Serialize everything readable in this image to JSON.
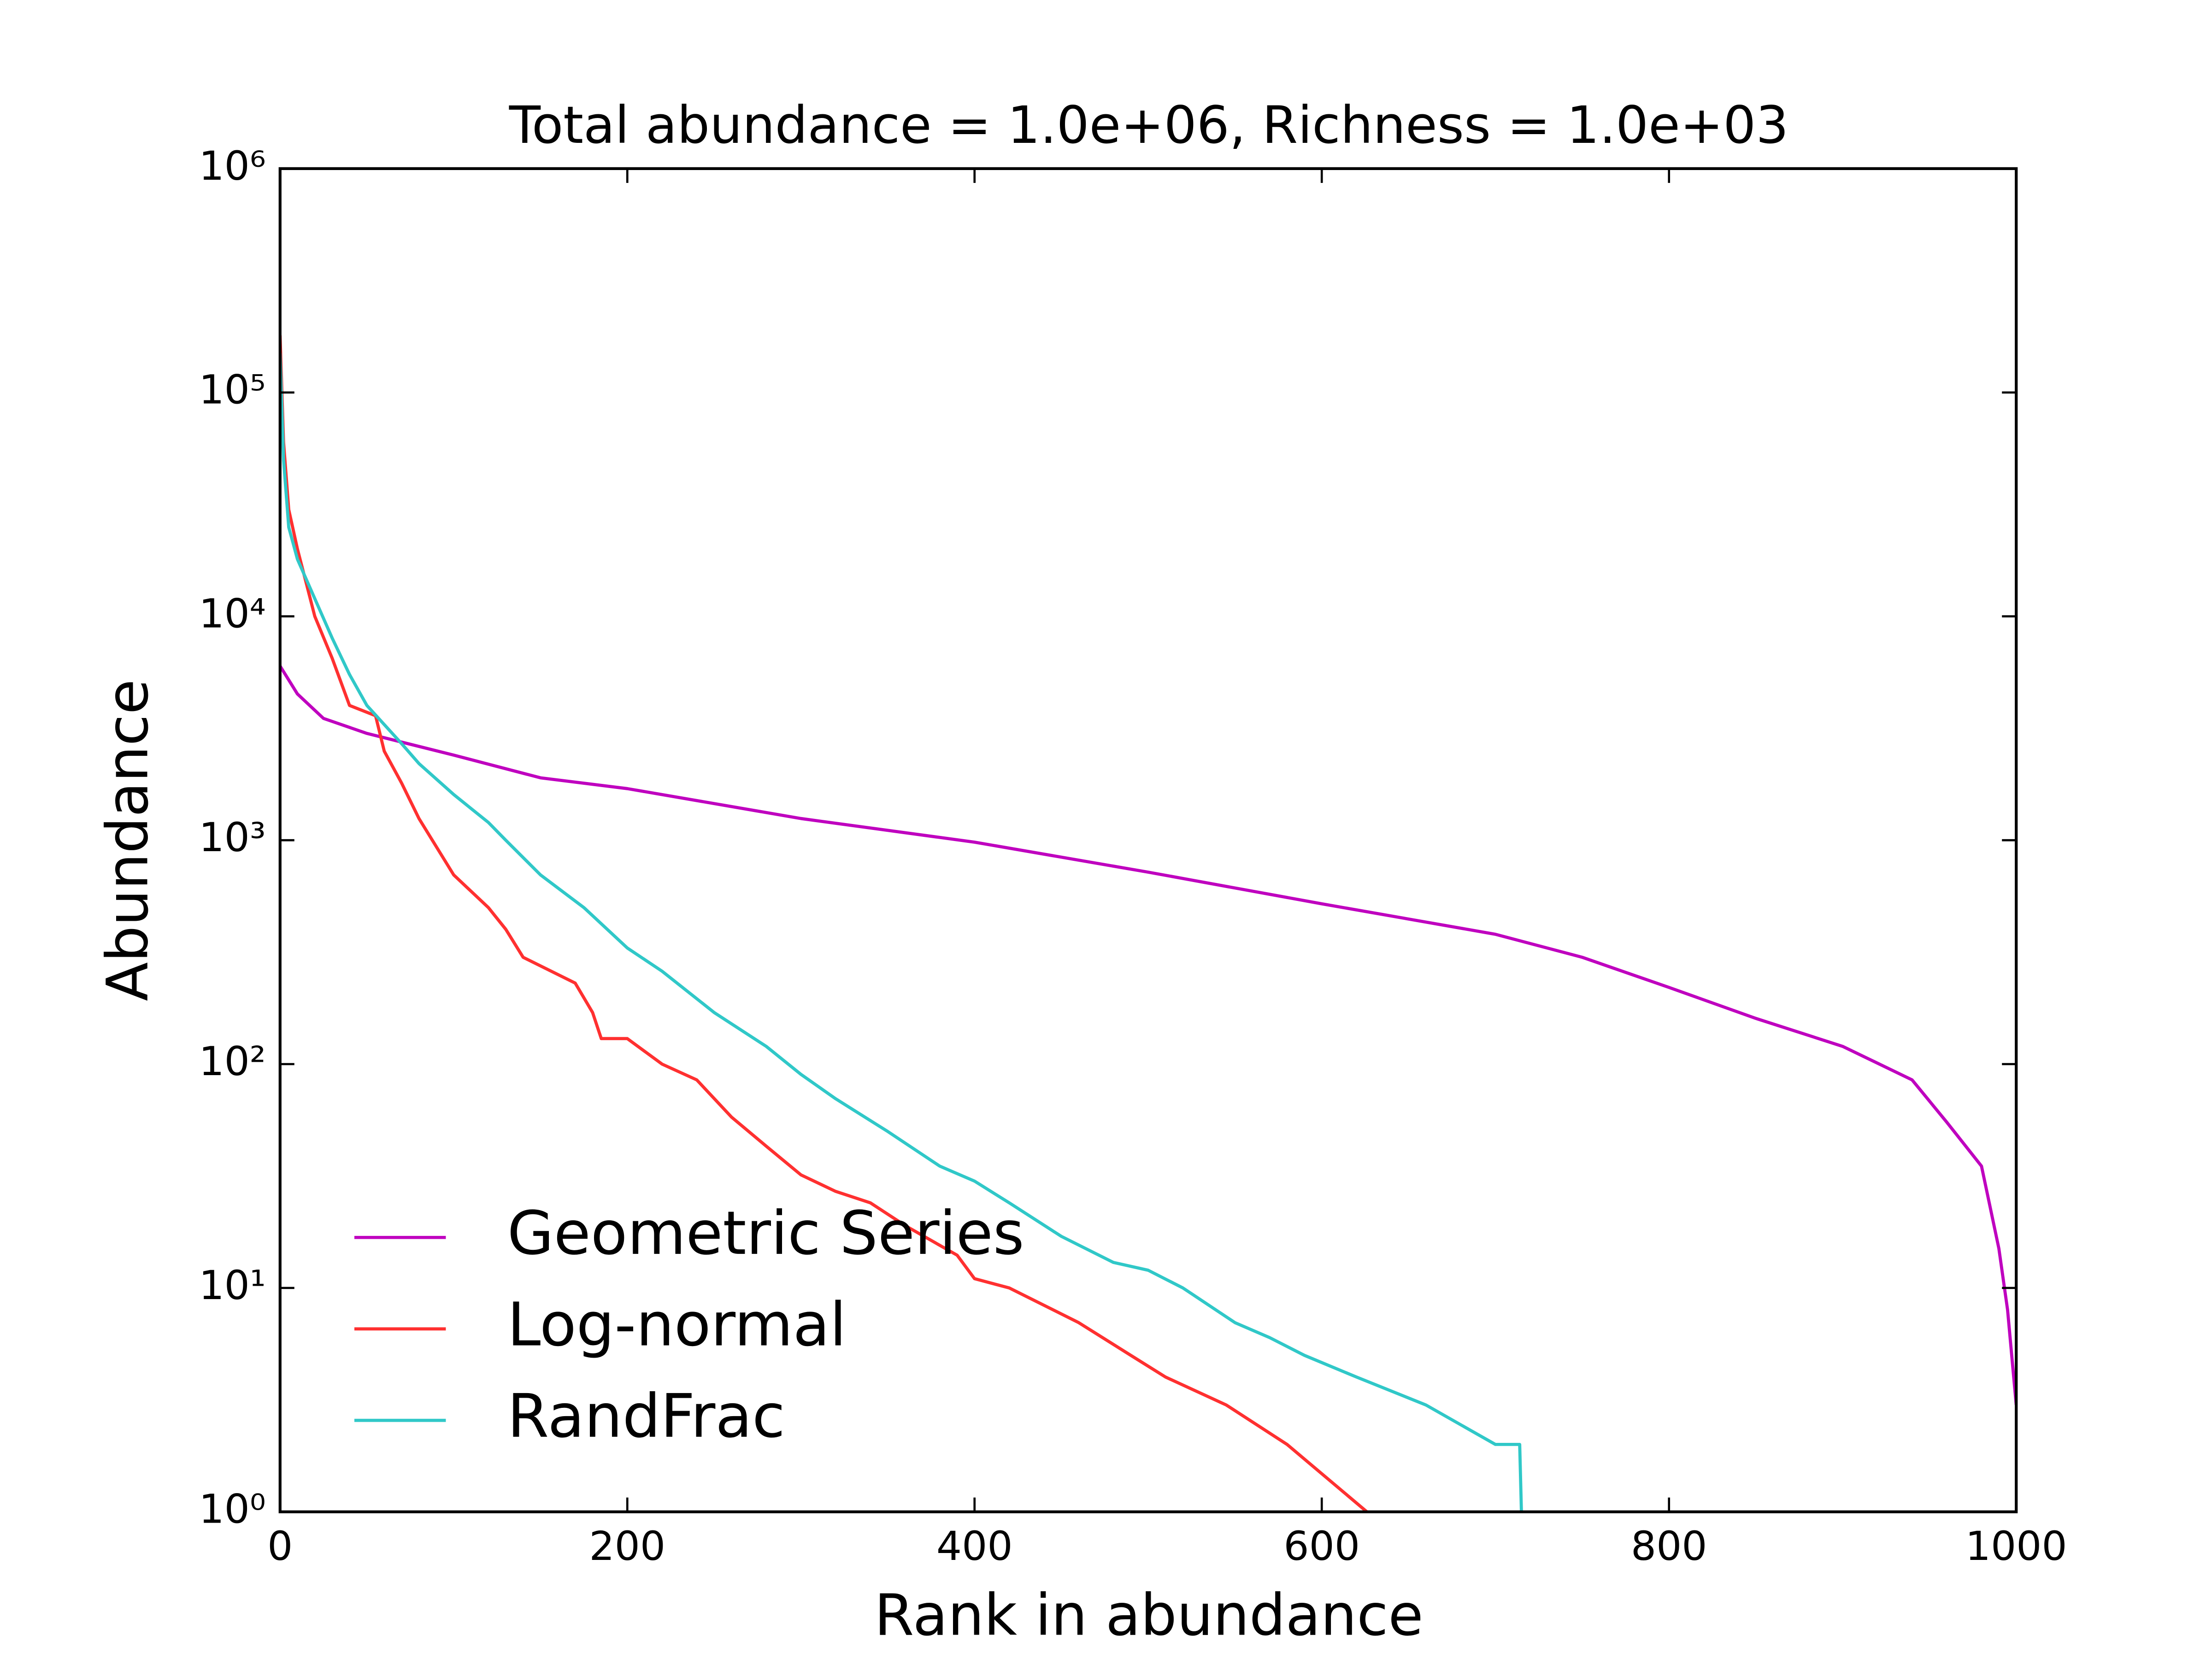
{
  "chart_data": {
    "type": "line",
    "title": "Total abundance = 1.0e+06, Richness = 1.0e+03",
    "x_label": "Rank in abundance",
    "y_label": "Abundance",
    "xlim": [
      0,
      1000
    ],
    "xticks": [
      0,
      200,
      400,
      600,
      800,
      1000
    ],
    "ylim": [
      1,
      1000000
    ],
    "log_y": true,
    "yticks": [
      {
        "value": 1,
        "label": "10⁰"
      },
      {
        "value": 10,
        "label": "10¹"
      },
      {
        "value": 100,
        "label": "10²"
      },
      {
        "value": 1000,
        "label": "10³"
      },
      {
        "value": 10000,
        "label": "10⁴"
      },
      {
        "value": 100000,
        "label": "10⁵"
      },
      {
        "value": 1000000,
        "label": "10⁶"
      }
    ],
    "legend": "lower left",
    "series": [
      {
        "name": "Geometric Series",
        "color": "#bf00bf",
        "x": [
          0,
          10,
          25,
          50,
          100,
          150,
          200,
          300,
          400,
          500,
          600,
          700,
          750,
          800,
          850,
          900,
          940,
          960,
          980,
          990,
          995,
          1000
        ],
        "values": [
          6000,
          4500,
          3500,
          3000,
          2400,
          1900,
          1700,
          1250,
          980,
          720,
          520,
          380,
          300,
          220,
          160,
          120,
          85,
          55,
          35,
          15,
          8,
          3
        ]
      },
      {
        "name": "Log-normal",
        "color": "#ff3030",
        "x": [
          0,
          2,
          5,
          10,
          20,
          30,
          40,
          55,
          60,
          70,
          80,
          100,
          120,
          130,
          140,
          170,
          180,
          185,
          200,
          220,
          240,
          260,
          280,
          300,
          320,
          340,
          360,
          390,
          400,
          420,
          460,
          490,
          510,
          545,
          580,
          626
        ],
        "values": [
          180000,
          60000,
          30000,
          20000,
          10000,
          6500,
          4000,
          3600,
          2500,
          1800,
          1250,
          700,
          500,
          400,
          300,
          230,
          170,
          130,
          130,
          100,
          85,
          58,
          43,
          32,
          27,
          24,
          19,
          14,
          11,
          10,
          7,
          5,
          4,
          3,
          2,
          1
        ]
      },
      {
        "name": "RandFrac",
        "color": "#30c8c8",
        "x": [
          0,
          2,
          5,
          10,
          20,
          30,
          40,
          50,
          70,
          80,
          100,
          120,
          130,
          150,
          175,
          200,
          220,
          250,
          280,
          300,
          320,
          350,
          380,
          400,
          420,
          450,
          480,
          500,
          520,
          550,
          570,
          590,
          620,
          660,
          700,
          714,
          715
        ],
        "values": [
          150000,
          50000,
          25000,
          18000,
          12000,
          8000,
          5500,
          4000,
          2700,
          2200,
          1600,
          1200,
          1000,
          700,
          500,
          330,
          260,
          170,
          120,
          90,
          70,
          50,
          35,
          30,
          24,
          17,
          13,
          12,
          10,
          7,
          6,
          5,
          4,
          3,
          2,
          2,
          1
        ]
      }
    ]
  }
}
